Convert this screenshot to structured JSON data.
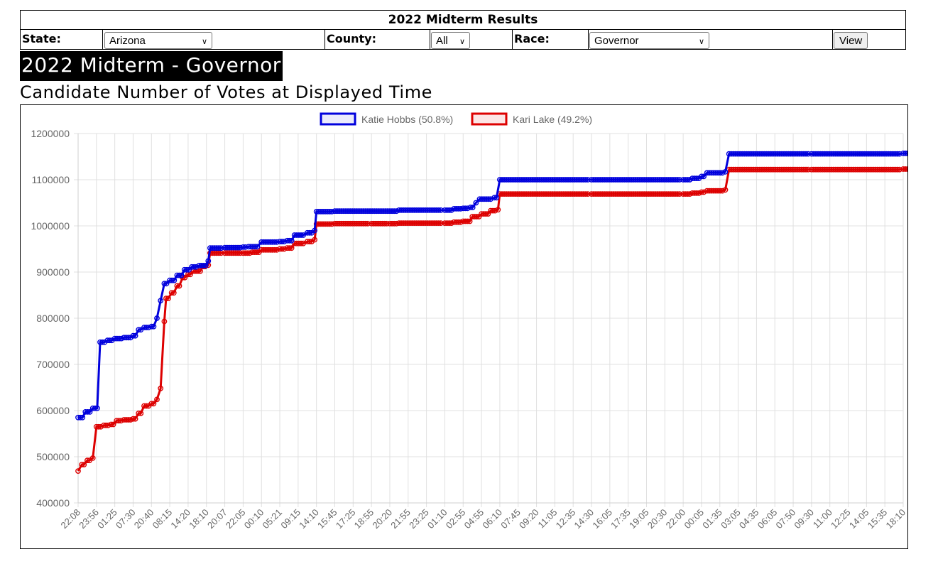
{
  "header": {
    "title": "2022 Midterm Results",
    "state_label": "State:",
    "state_value": "Arizona",
    "county_label": "County:",
    "county_value": "All",
    "race_label": "Race:",
    "race_value": "Governor",
    "view_button": "View"
  },
  "page_title": "2022 Midterm - Governor",
  "subtitle": "Candidate Number of Votes at Displayed Time",
  "colors": {
    "hobbs": "#0000dd",
    "lake": "#dd0000"
  },
  "chart_data": {
    "type": "line",
    "title": "",
    "xlabel": "",
    "ylabel": "",
    "ylim": [
      400000,
      1200000
    ],
    "yticks": [
      400000,
      500000,
      600000,
      700000,
      800000,
      900000,
      1000000,
      1100000,
      1200000
    ],
    "grid": true,
    "legend_position": "top-center",
    "x_tick_labels": [
      "22:08",
      "23:56",
      "01:25",
      "07:30",
      "20:40",
      "08:15",
      "14:20",
      "18:10",
      "20:07",
      "22:05",
      "00:10",
      "05:21",
      "09:15",
      "14:10",
      "15:45",
      "17:25",
      "18:55",
      "20:20",
      "21:55",
      "23:25",
      "01:10",
      "02:55",
      "04:55",
      "06:10",
      "07:45",
      "09:20",
      "11:05",
      "12:35",
      "14:30",
      "16:05",
      "17:35",
      "19:05",
      "20:30",
      "22:00",
      "00:05",
      "01:35",
      "03:05",
      "04:35",
      "06:05",
      "07:50",
      "09:30",
      "11:00",
      "12:25",
      "14:05",
      "15:35",
      "18:10"
    ],
    "series": [
      {
        "name": "Katie Hobbs (50.8%)",
        "color": "#0000dd",
        "points": [
          [
            0,
            585000
          ],
          [
            0.4,
            597000
          ],
          [
            0.8,
            605000
          ],
          [
            1.2,
            748000
          ],
          [
            1.6,
            752000
          ],
          [
            2.0,
            756000
          ],
          [
            2.5,
            758000
          ],
          [
            3.0,
            762000
          ],
          [
            3.3,
            775000
          ],
          [
            3.6,
            780000
          ],
          [
            4.0,
            782000
          ],
          [
            4.3,
            800000
          ],
          [
            4.5,
            838000
          ],
          [
            4.7,
            875000
          ],
          [
            5.0,
            882000
          ],
          [
            5.4,
            893000
          ],
          [
            5.8,
            905000
          ],
          [
            6.2,
            911000
          ],
          [
            6.6,
            914000
          ],
          [
            7.1,
            924000
          ],
          [
            7.2,
            952000
          ],
          [
            8.0,
            953000
          ],
          [
            9.0,
            954000
          ],
          [
            9.3,
            955000
          ],
          [
            10.0,
            965000
          ],
          [
            11.0,
            966000
          ],
          [
            11.4,
            968000
          ],
          [
            11.8,
            980000
          ],
          [
            12.5,
            985000
          ],
          [
            12.9,
            990000
          ],
          [
            13.0,
            1031000
          ],
          [
            14.0,
            1032000
          ],
          [
            17.0,
            1032000
          ],
          [
            17.5,
            1034000
          ],
          [
            20.0,
            1034000
          ],
          [
            20.5,
            1037000
          ],
          [
            21.0,
            1038000
          ],
          [
            21.4,
            1040000
          ],
          [
            21.7,
            1050000
          ],
          [
            21.9,
            1058000
          ],
          [
            22.7,
            1061000
          ],
          [
            23.0,
            1100000
          ],
          [
            28.0,
            1100000
          ],
          [
            33.0,
            1100000
          ],
          [
            33.5,
            1103000
          ],
          [
            34.0,
            1107000
          ],
          [
            34.3,
            1115000
          ],
          [
            35.3,
            1117000
          ],
          [
            35.5,
            1156000
          ],
          [
            40.0,
            1156000
          ],
          [
            45.0,
            1157000
          ],
          [
            46.0,
            1158000
          ],
          [
            48.0,
            1158000
          ],
          [
            49.0,
            1159000
          ],
          [
            49.7,
            1163000
          ],
          [
            50.0,
            1167000
          ],
          [
            50.8,
            1168000
          ]
        ]
      },
      {
        "name": "Kari Lake (49.2%)",
        "color": "#dd0000",
        "points": [
          [
            0,
            469000
          ],
          [
            0.2,
            483000
          ],
          [
            0.5,
            492000
          ],
          [
            0.8,
            497000
          ],
          [
            1.0,
            565000
          ],
          [
            1.4,
            568000
          ],
          [
            1.8,
            570000
          ],
          [
            2.1,
            578000
          ],
          [
            2.5,
            580000
          ],
          [
            3.0,
            582000
          ],
          [
            3.3,
            594000
          ],
          [
            3.6,
            610000
          ],
          [
            4.0,
            615000
          ],
          [
            4.3,
            624000
          ],
          [
            4.5,
            648000
          ],
          [
            4.7,
            793000
          ],
          [
            4.8,
            843000
          ],
          [
            5.1,
            855000
          ],
          [
            5.4,
            870000
          ],
          [
            5.7,
            888000
          ],
          [
            6.0,
            895000
          ],
          [
            6.3,
            902000
          ],
          [
            6.8,
            912000
          ],
          [
            7.1,
            915000
          ],
          [
            7.2,
            941000
          ],
          [
            8.0,
            941000
          ],
          [
            9.0,
            941000
          ],
          [
            9.5,
            943000
          ],
          [
            10.0,
            948000
          ],
          [
            11.0,
            950000
          ],
          [
            11.4,
            952000
          ],
          [
            11.8,
            962000
          ],
          [
            12.5,
            966000
          ],
          [
            12.9,
            970000
          ],
          [
            13.0,
            1004000
          ],
          [
            14.0,
            1005000
          ],
          [
            16.0,
            1005000
          ],
          [
            17.0,
            1005000
          ],
          [
            17.5,
            1006000
          ],
          [
            20.0,
            1006000
          ],
          [
            20.5,
            1008000
          ],
          [
            21.0,
            1010000
          ],
          [
            21.5,
            1020000
          ],
          [
            22.0,
            1026000
          ],
          [
            22.5,
            1033000
          ],
          [
            22.9,
            1035000
          ],
          [
            23.0,
            1069000
          ],
          [
            28.0,
            1069000
          ],
          [
            33.0,
            1069000
          ],
          [
            33.5,
            1071000
          ],
          [
            34.0,
            1073000
          ],
          [
            34.3,
            1076000
          ],
          [
            35.3,
            1078000
          ],
          [
            35.5,
            1122000
          ],
          [
            40.0,
            1122000
          ],
          [
            45.0,
            1123000
          ],
          [
            47.0,
            1123000
          ],
          [
            48.0,
            1124000
          ],
          [
            49.0,
            1125000
          ],
          [
            49.5,
            1128000
          ],
          [
            50.0,
            1131000
          ],
          [
            50.8,
            1131000
          ]
        ]
      }
    ]
  }
}
